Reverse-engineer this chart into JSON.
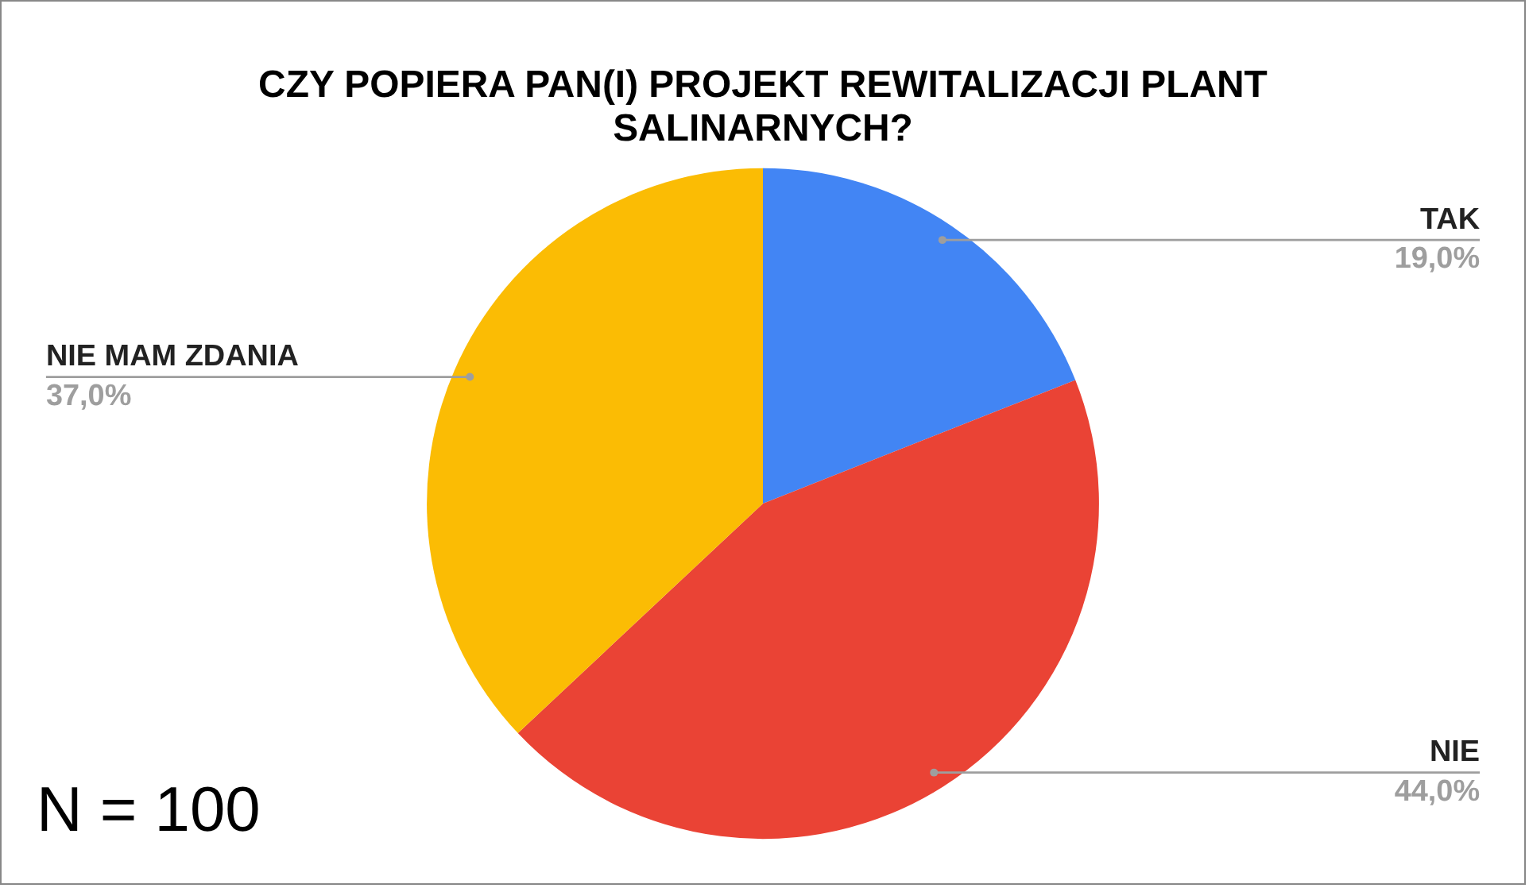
{
  "chart_data": {
    "type": "pie",
    "title": "CZY POPIERA PAN(I) PROJEKT REWITALIZACJI PLANT SALINARNYCH?",
    "categories": [
      "TAK",
      "NIE",
      "NIE MAM ZDANIA"
    ],
    "values": [
      19,
      44,
      37
    ],
    "colors": [
      "#4285f4",
      "#ea4335",
      "#fbbc04"
    ],
    "value_labels": [
      "19,0%",
      "44,0%",
      "37,0%"
    ],
    "legend": false,
    "annotations": [
      "N = 100"
    ]
  }
}
